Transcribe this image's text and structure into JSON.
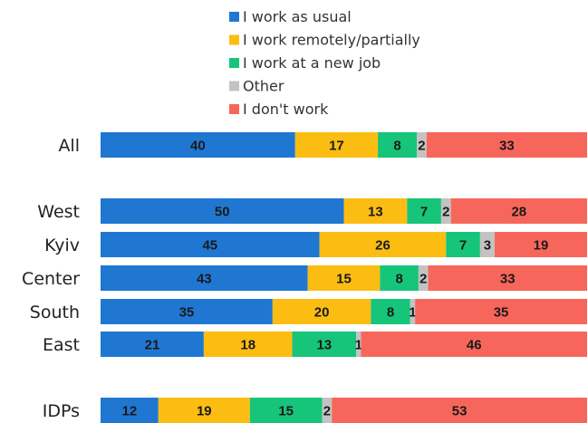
{
  "chart_data": {
    "type": "bar",
    "orientation": "horizontal",
    "stacked": true,
    "categories": [
      "All",
      "West",
      "Kyiv",
      "Center",
      "South",
      "East",
      "IDPs"
    ],
    "series": [
      {
        "name": "I work as usual",
        "color": "#1f77d2",
        "values": [
          40,
          50,
          45,
          43,
          35,
          21,
          12
        ]
      },
      {
        "name": "I work remotely/partially",
        "color": "#fbbd12",
        "values": [
          17,
          13,
          26,
          15,
          20,
          18,
          19
        ]
      },
      {
        "name": "I work at a new job",
        "color": "#16c47a",
        "values": [
          8,
          7,
          7,
          8,
          8,
          13,
          15
        ]
      },
      {
        "name": "Other",
        "color": "#c3c3c3",
        "values": [
          2,
          2,
          3,
          2,
          1,
          1,
          2
        ]
      },
      {
        "name": "I don't work",
        "color": "#f7665b",
        "values": [
          33,
          28,
          19,
          33,
          35,
          46,
          53
        ]
      }
    ],
    "legend_position": "top",
    "grid": false
  }
}
